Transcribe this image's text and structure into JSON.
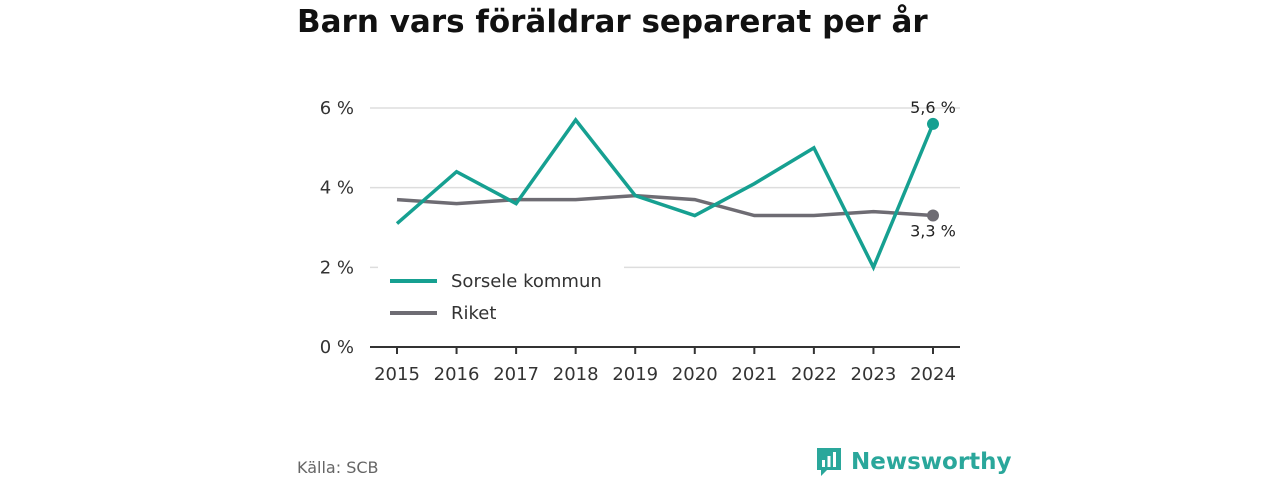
{
  "title": "Barn vars föräldrar separerat per år",
  "source": "Källa: SCB",
  "brand": {
    "name": "Newsworthy",
    "icon": "bar-chart-logo-icon",
    "color": "#2aa79b"
  },
  "chart_data": {
    "type": "line",
    "x": [
      "2015",
      "2016",
      "2017",
      "2018",
      "2019",
      "2020",
      "2021",
      "2022",
      "2023",
      "2024"
    ],
    "ylim": [
      0,
      6
    ],
    "yticks": [
      0,
      2,
      4,
      6
    ],
    "ytick_labels": [
      "0 %",
      "2 %",
      "4 %",
      "6 %"
    ],
    "grid": true,
    "legend": "bottom-left",
    "series": [
      {
        "name": "Sorsele kommun",
        "color": "#16a091",
        "values": [
          3.1,
          4.4,
          3.6,
          5.7,
          3.8,
          3.3,
          4.1,
          5.0,
          2.0,
          5.6
        ],
        "end_label": "5,6 %"
      },
      {
        "name": "Riket",
        "color": "#6e6c73",
        "values": [
          3.7,
          3.6,
          3.7,
          3.7,
          3.8,
          3.7,
          3.3,
          3.3,
          3.4,
          3.3
        ],
        "end_label": "3,3 %"
      }
    ]
  }
}
